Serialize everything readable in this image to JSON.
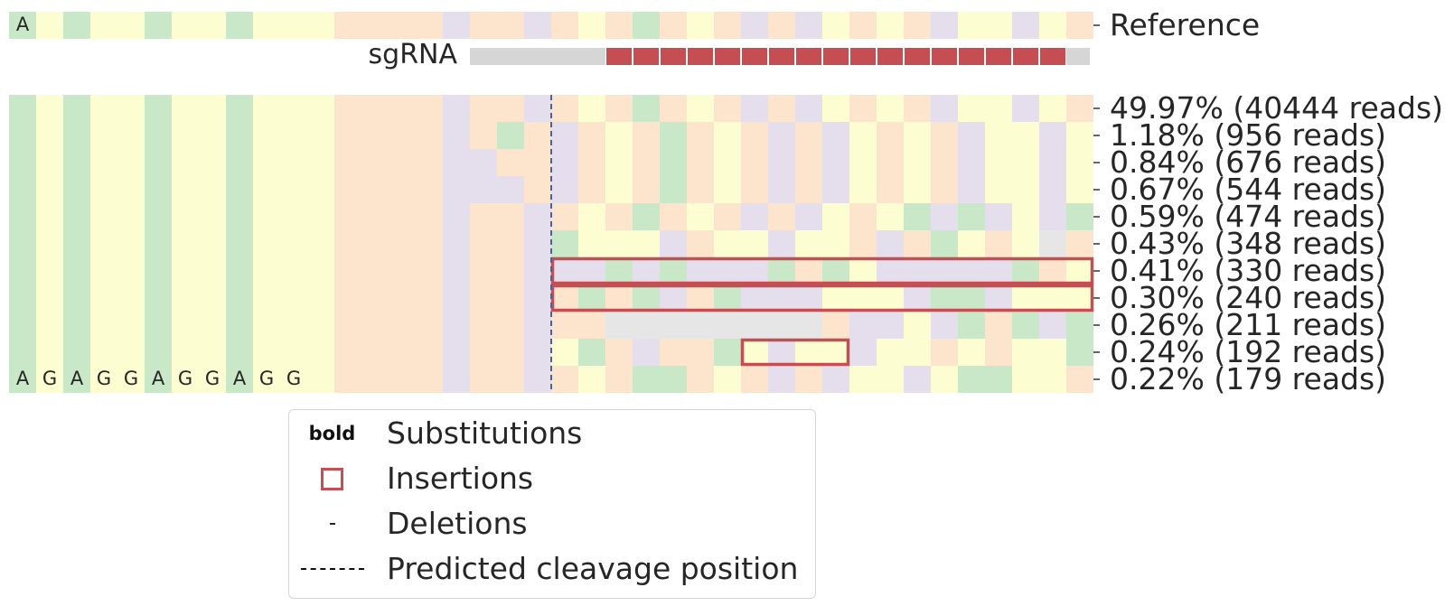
{
  "chart_data": {
    "type": "heatmap",
    "title": "",
    "columns": 40,
    "base_colors": {
      "A": "#c9e8c8",
      "G": "#fdfdd2",
      "C": "#fde4cc",
      "T": "#e5deec",
      "N": "#e6e6e6"
    },
    "reference_label": "Reference",
    "reference_sequence": "AGAGGAGGAGGGCCCCTCCTCGCACGCTCTGCGCTGGTGC",
    "reference_printed_letters": [
      {
        "col": 0,
        "text": "A"
      }
    ],
    "sgrna_label": "sgRNA",
    "sgrna": {
      "grey_start": 17,
      "grey_end": 22,
      "red_start": 22,
      "red_end": 39,
      "tail_start": 39,
      "tail_end": 40,
      "color": "#c44e52",
      "grey_color": "#d6d6d6"
    },
    "cleavage_position": 20,
    "rows": [
      {
        "label": "49.97% (40444 reads)",
        "percent": 49.97,
        "reads": 40444,
        "sequence": "AGAGGAGGAGGGCCCCTCCTCGCACGCTCTGCGCTGGTGC"
      },
      {
        "label": "1.18% (956 reads)",
        "percent": 1.18,
        "reads": 956,
        "sequence": "AGAGGAGGAGGGCCCCTCACTCGCACGCTCTGCGCTGGTGC"
      },
      {
        "label": "0.84% (676 reads)",
        "percent": 0.84,
        "reads": 676,
        "sequence": "AGAGGAGGAGGGCCCCTTCCTCGCACGCTCTGCGCTGGTGT"
      },
      {
        "label": "0.67% (544 reads)",
        "percent": 0.67,
        "reads": 544,
        "sequence": "AGAGGAGGAGGGCCCCTTTCTCGCACGCTCTGCGCTGGTGC"
      },
      {
        "label": "0.59% (474 reads)",
        "percent": 0.59,
        "reads": 474,
        "sequence": "AGAGGAGGAGGGCCCCTCCTCGCACGCTCTGCGATATGTA"
      },
      {
        "label": "0.43% (348 reads)",
        "percent": 0.43,
        "reads": 348,
        "sequence": "AGAGGAGGAGGGCCCCTCCTAGGGTCGGTGGCTCAGCGNC"
      },
      {
        "label": "0.41% (330 reads)",
        "percent": 0.41,
        "reads": 330,
        "sequence": "AGAGGAGGAGGGCCCCTCCTTTATATTTACAGTTTTTACGT",
        "insertions": [
          {
            "start": 20,
            "end": 40
          }
        ]
      },
      {
        "label": "0.30% (240 reads)",
        "percent": 0.3,
        "reads": 240,
        "sequence": "AGAGGAGGAGGGCCCCTCCTCACATCATTTGGGTAATGGG",
        "insertions": [
          {
            "start": 20,
            "end": 40
          }
        ]
      },
      {
        "label": "0.26% (211 reads)",
        "percent": 0.26,
        "reads": 211,
        "sequence": "AGAGGAGGAGGGCCCCTCCTCCNNNNNNNNCTTGTACATAGN"
      },
      {
        "label": "0.24% (192 reads)",
        "percent": 0.24,
        "reads": 192,
        "sequence": "AGAGGAGGAGGGCCCCTCCTGACTCCAGTGGTGGCGCGGATT",
        "insertions": [
          {
            "start": 27,
            "end": 31
          }
        ]
      },
      {
        "label": "0.22% (179 reads)",
        "percent": 0.22,
        "reads": 179,
        "sequence": "AGAGGAGGAGGGCCCCTCCTCGCAACGCTCTGGTGAAGGC",
        "printed_letters": "AGAGGAGGAGG"
      }
    ],
    "insertion_color": "#c44e52",
    "cleavage_line_color": "#4c5fa0"
  },
  "legend": {
    "items": [
      {
        "symbol": "bold",
        "label": "Substitutions"
      },
      {
        "symbol": "square",
        "label": "Insertions"
      },
      {
        "symbol": "-",
        "label": "Deletions"
      },
      {
        "symbol": "dashed-line",
        "label": "Predicted cleavage position"
      }
    ]
  }
}
